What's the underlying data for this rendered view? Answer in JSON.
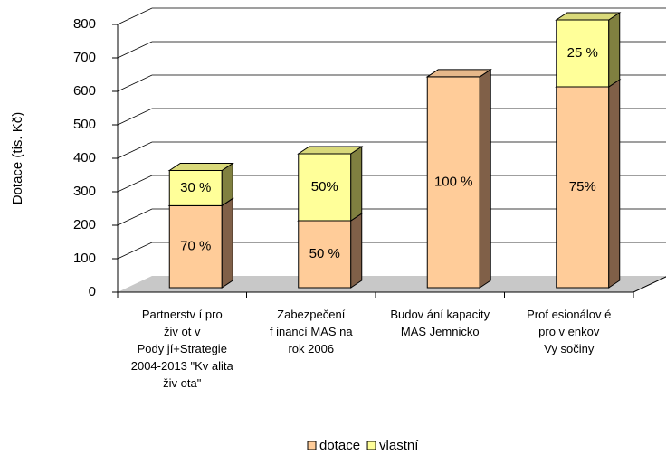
{
  "chart_data": {
    "type": "bar3d_stacked",
    "y_label": "Dotace (tis. Kč)",
    "categories": [
      "Partnerstv í pro\nživ ot v\nPody jí+Strategie\n2004-2013 \"Kv alita\nživ ota\"",
      "Zabezpečení\nf inancí MAS na\nrok 2006",
      "Budov ání kapacity\nMAS Jemnicko",
      "Prof esionálov é\npro v enkov\nVy sočiny"
    ],
    "series": [
      {
        "name": "dotace",
        "color": "#FFCC99",
        "side_color": "#806048",
        "top_color": "#E6B88A",
        "values": [
          245,
          200,
          630,
          600
        ],
        "value_labels": [
          "70 %",
          "50 %",
          "100 %",
          "75%"
        ]
      },
      {
        "name": "vlastní",
        "color": "#FFFF99",
        "side_color": "#808040",
        "top_color": "#D9D97A",
        "values": [
          105,
          200,
          0,
          200
        ],
        "value_labels": [
          "30 %",
          "50%",
          null,
          "25 %"
        ]
      }
    ],
    "ylim": [
      0,
      800
    ],
    "yticks": [
      0,
      100,
      200,
      300,
      400,
      500,
      600,
      700,
      800
    ],
    "grid": true,
    "legend": "bottom"
  }
}
